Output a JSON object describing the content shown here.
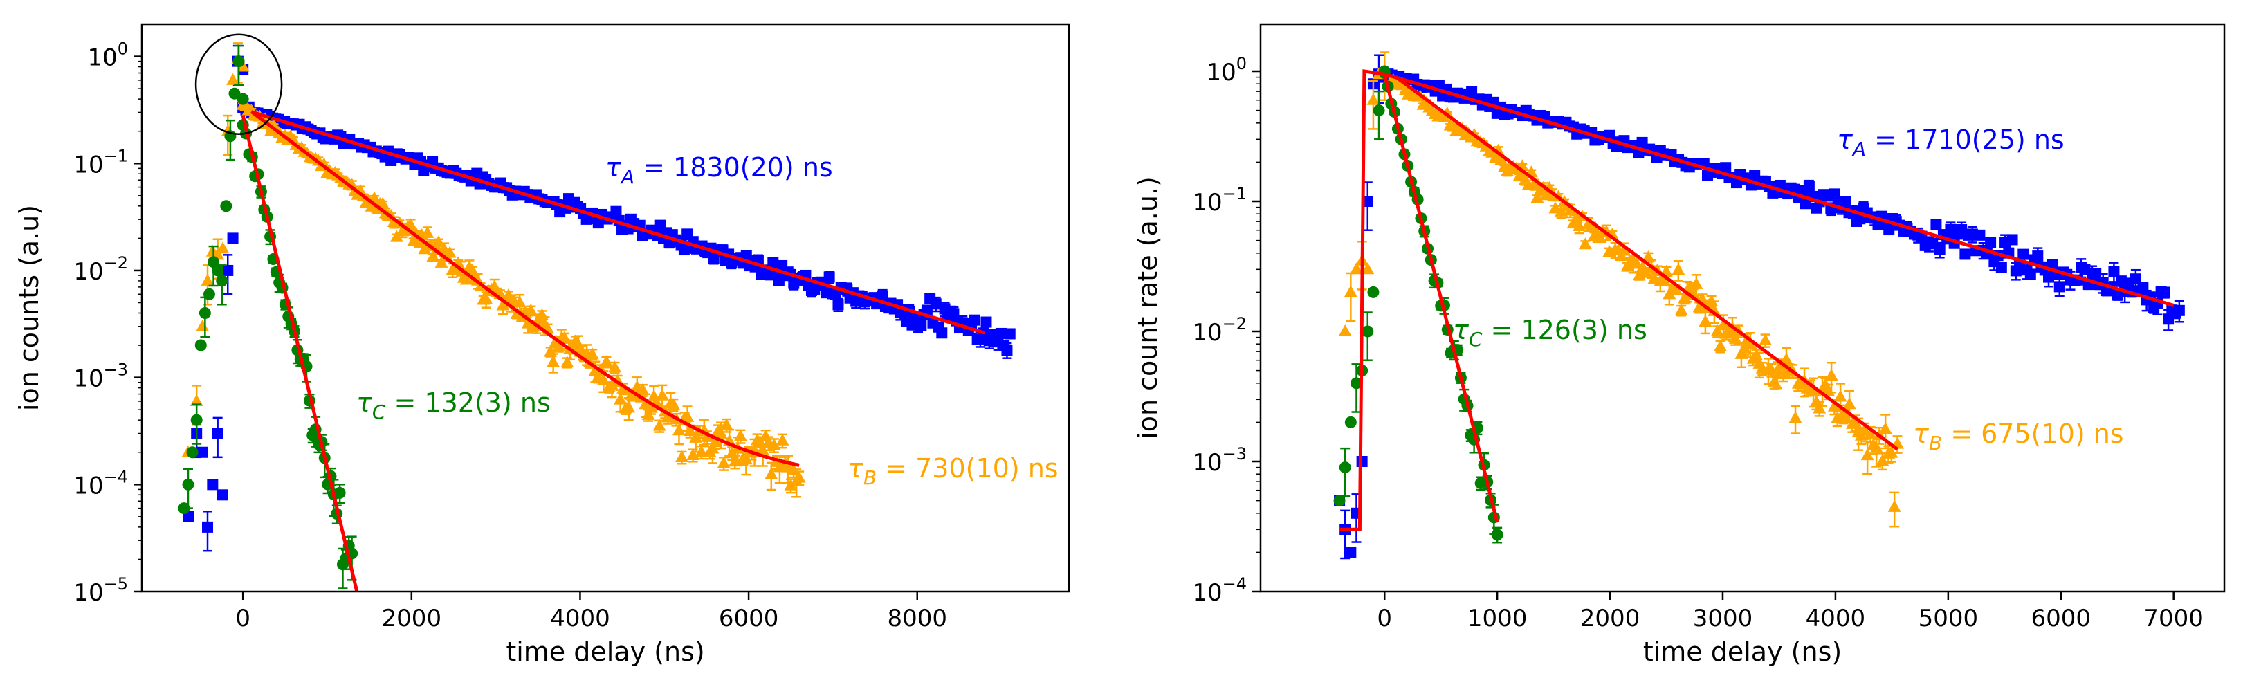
{
  "colors": {
    "tau_A": "#0000ff",
    "tau_B": "#ffa500",
    "tau_C": "#008000",
    "fit": "#ff0000",
    "axes": "#000000"
  },
  "chart_data": [
    {
      "type": "scatter",
      "title": "",
      "xlabel": "time delay (ns)",
      "ylabel": "ion counts (a.u)",
      "yscale": "log",
      "xlim": [
        -1200,
        9800
      ],
      "ylim": [
        1e-05,
        2.0
      ],
      "xticks": [
        0,
        2000,
        4000,
        6000,
        8000
      ],
      "xtick_labels": [
        "0",
        "2000",
        "4000",
        "6000",
        "8000"
      ],
      "yticks": [
        1e-05,
        0.0001,
        0.001,
        0.01,
        0.1,
        1
      ],
      "ytick_exponents": [
        "−5",
        "−4",
        "−3",
        "−2",
        "−1",
        "0"
      ],
      "ytick_base": "10",
      "annotations": [
        {
          "id": "A",
          "symbol": "τ",
          "sub": "A",
          "text": " = 1830(20) ns",
          "color": "#0000ff"
        },
        {
          "id": "B",
          "symbol": "τ",
          "sub": "B",
          "text": " = 730(10) ns",
          "color": "#ffa500"
        },
        {
          "id": "C",
          "symbol": "τ",
          "sub": "C",
          "text": " = 132(3) ns",
          "color": "#008000"
        }
      ],
      "highlight_ellipse": {
        "x": -50,
        "y": 0.55
      },
      "series": [
        {
          "name": "A",
          "marker": "square",
          "color": "#0000ff",
          "rise": {
            "x": [
              -650,
              -550,
              -480,
              -420,
              -360,
              -300,
              -240,
              -180,
              -120,
              -60,
              0
            ],
            "y": [
              5e-05,
              0.0003,
              0.0002,
              4e-05,
              0.0001,
              0.0003,
              8e-05,
              0.01,
              0.02,
              0.9,
              0.75
            ]
          },
          "decay": {
            "tau": 1830,
            "amp": 0.32,
            "x_start": 0,
            "x_end": 9100,
            "noise": 0.12,
            "n": 260
          },
          "fit": {
            "tau": 1830,
            "amp": 0.32,
            "x_start": 100,
            "x_end": 8800
          }
        },
        {
          "name": "B",
          "marker": "triangle",
          "color": "#ffa500",
          "rise": {
            "x": [
              -650,
              -550,
              -480,
              -420,
              -360,
              -300,
              -240,
              -180,
              -120,
              -60,
              0
            ],
            "y": [
              0.0002,
              0.0006,
              0.003,
              0.008,
              0.015,
              0.014,
              0.016,
              0.2,
              0.6,
              0.95,
              0.8
            ]
          },
          "decay": {
            "tau": 730,
            "amp": 0.35,
            "x_start": 0,
            "x_end": 6600,
            "noise": 0.15,
            "n": 200
          },
          "fit": {
            "tau": 730,
            "amp": 0.35,
            "x_start": 100,
            "x_end": 6600,
            "floor": 0.00011
          }
        },
        {
          "name": "C",
          "marker": "circle",
          "color": "#008000",
          "rise": {
            "x": [
              -700,
              -650,
              -600,
              -550,
              -500,
              -450,
              -400,
              -350,
              -300,
              -250,
              -200,
              -150,
              -100,
              -50,
              0
            ],
            "y": [
              6e-05,
              0.0001,
              0.0002,
              0.0004,
              0.002,
              0.004,
              0.006,
              0.012,
              0.01,
              0.008,
              0.04,
              0.18,
              0.45,
              0.9,
              0.4
            ]
          },
          "decay": {
            "tau": 132,
            "amp": 0.25,
            "x_start": 0,
            "x_end": 1400,
            "noise": 0.18,
            "n": 40
          },
          "fit": {
            "tau": 132,
            "amp": 0.28,
            "x_start": 0,
            "x_end": 1400
          }
        }
      ]
    },
    {
      "type": "scatter",
      "title": "",
      "xlabel": "time delay (ns)",
      "ylabel": "ion count rate (a.u.)",
      "yscale": "log",
      "xlim": [
        -1100,
        7450
      ],
      "ylim": [
        0.0001,
        2.3
      ],
      "xticks": [
        0,
        1000,
        2000,
        3000,
        4000,
        5000,
        6000,
        7000
      ],
      "xtick_labels": [
        "0",
        "1000",
        "2000",
        "3000",
        "4000",
        "5000",
        "6000",
        "7000"
      ],
      "yticks": [
        0.0001,
        0.001,
        0.01,
        0.1,
        1
      ],
      "ytick_exponents": [
        "−4",
        "−3",
        "−2",
        "−1",
        "0"
      ],
      "ytick_base": "10",
      "annotations": [
        {
          "id": "A",
          "symbol": "τ",
          "sub": "A",
          "text": " = 1710(25) ns",
          "color": "#0000ff"
        },
        {
          "id": "B",
          "symbol": "τ",
          "sub": "B",
          "text": " = 675(10) ns",
          "color": "#ffa500"
        },
        {
          "id": "C",
          "symbol": "τ",
          "sub": "C",
          "text": " = 126(3) ns",
          "color": "#008000"
        }
      ],
      "series": [
        {
          "name": "A",
          "marker": "square",
          "color": "#0000ff",
          "rise": {
            "x": [
              -400,
              -350,
              -300,
              -250,
              -200,
              -150,
              -100,
              -50,
              0
            ],
            "y": [
              0.0005,
              0.0003,
              0.0002,
              0.0004,
              0.001,
              0.1,
              0.8,
              0.95,
              0.9
            ]
          },
          "decay": {
            "tau": 1710,
            "amp": 0.95,
            "x_start": 0,
            "x_end": 7050,
            "noise": 0.2,
            "n": 220
          },
          "fit": {
            "tau": 1710,
            "amp": 0.95,
            "x_start": 0,
            "x_end": 7000
          }
        },
        {
          "name": "B",
          "marker": "triangle",
          "color": "#ffa500",
          "rise": {
            "x": [
              -350,
              -300,
              -250,
              -200,
              -150,
              -100,
              -50,
              0
            ],
            "y": [
              0.01,
              0.02,
              0.03,
              0.035,
              0.03,
              0.6,
              0.95,
              1.0
            ]
          },
          "decay": {
            "tau": 675,
            "amp": 0.95,
            "x_start": 50,
            "x_end": 4550,
            "noise": 0.2,
            "n": 170
          },
          "fit": {
            "tau": 675,
            "amp": 1.05,
            "x_start": 100,
            "x_end": 4550
          }
        },
        {
          "name": "C",
          "marker": "circle",
          "color": "#008000",
          "rise": {
            "x": [
              -400,
              -350,
              -300,
              -250,
              -200,
              -150,
              -100,
              -50,
              0
            ],
            "y": [
              0.0005,
              0.0009,
              0.002,
              0.004,
              0.005,
              0.01,
              0.02,
              0.5,
              1.0
            ]
          },
          "decay": {
            "tau": 126,
            "amp": 0.95,
            "x_start": 0,
            "x_end": 1000,
            "noise": 0.15,
            "n": 35
          },
          "fit": {
            "tau": 126,
            "amp": 0.95,
            "x_start": 0,
            "x_end": 1000,
            "baseline": 0.0003,
            "rise_x": [
              -400,
              -220
            ]
          }
        }
      ]
    }
  ]
}
